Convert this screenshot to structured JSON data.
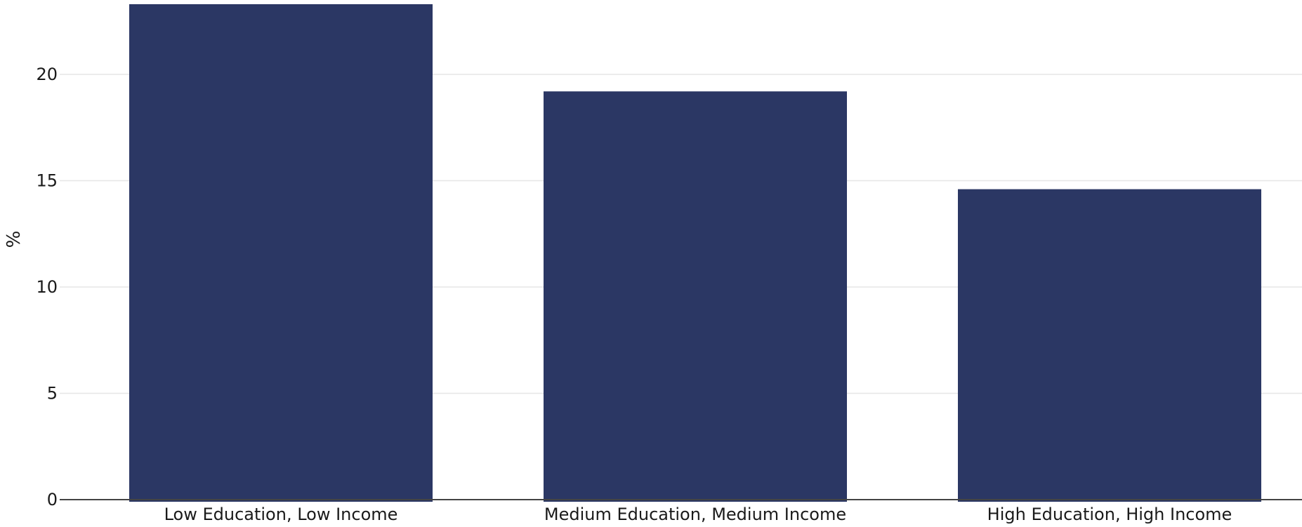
{
  "chart_data": {
    "type": "bar",
    "title": "",
    "xlabel": "",
    "ylabel": "%",
    "categories": [
      "Low Education, Low Income",
      "Medium Education, Medium Income",
      "High Education, High Income"
    ],
    "values": [
      23.3,
      19.2,
      14.6
    ],
    "ylim": [
      0,
      23.3
    ],
    "yticks": [
      0,
      5,
      10,
      15,
      20
    ],
    "grid": true,
    "legend": "none",
    "bar_color": "#2b3764",
    "grid_color": "#e6e6e6",
    "axis_color": "#444444"
  }
}
